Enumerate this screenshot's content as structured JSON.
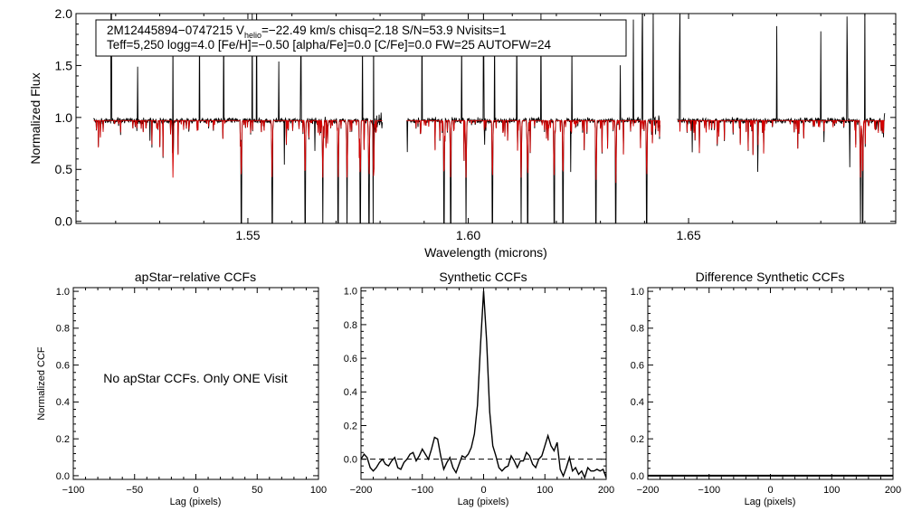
{
  "colors": {
    "observed": "#000000",
    "model": "#d40000",
    "axis": "#000000",
    "background": "#ffffff"
  },
  "chart_data": [
    {
      "type": "line",
      "title": "",
      "annotation_line1_prefix": "2M12445894−0747215  V",
      "annotation_line1_sub": "helio",
      "annotation_line1_suffix": "=−22.49 km/s  chisq=2.18  S/N=53.9  Nvisits=1",
      "annotation_line2": "Teff=5,250 logg=4.0 [Fe/H]=−0.50 [alpha/Fe]=0.0 [C/Fe]=0.0 FW=25 AUTOFW=24",
      "xlabel": "Wavelength (microns)",
      "ylabel": "Normalized Flux",
      "xlim": [
        1.511,
        1.697
      ],
      "ylim": [
        -0.02,
        2.0
      ],
      "xticks": [
        1.55,
        1.6,
        1.65
      ],
      "xtick_labels": [
        "1.55",
        "1.60",
        "1.65"
      ],
      "yticks": [
        0.0,
        0.5,
        1.0,
        1.5,
        2.0
      ],
      "ytick_labels": [
        "0.0",
        "0.5",
        "1.0",
        "1.5",
        "2.0"
      ],
      "chips": [
        [
          1.515,
          1.5805
        ],
        [
          1.586,
          1.6435
        ],
        [
          1.6475,
          1.6945
        ]
      ],
      "series": [
        {
          "name": "observed spectrum"
        },
        {
          "name": "synthetic model"
        }
      ],
      "strong_lines": [
        1.533,
        1.5485,
        1.5555,
        1.563,
        1.567,
        1.5705,
        1.5725,
        1.5755,
        1.5775,
        1.5785,
        1.5945,
        1.596,
        1.5995,
        1.6055,
        1.612,
        1.6135,
        1.6195,
        1.6215,
        1.629,
        1.6335,
        1.6405,
        1.689,
        1.6895
      ],
      "emission_spikes": [
        1.519,
        1.525,
        1.533,
        1.539,
        1.5445,
        1.551,
        1.552,
        1.557,
        1.562,
        1.576,
        1.5785,
        1.5895,
        1.5985,
        1.6035,
        1.606,
        1.611,
        1.6165,
        1.6235,
        1.6345,
        1.6375,
        1.6395,
        1.642,
        1.648,
        1.67,
        1.68,
        1.686,
        1.69
      ]
    },
    {
      "type": "line",
      "title": "apStar−relative CCFs",
      "xlabel": "Lag (pixels)",
      "ylabel": "Normalized CCF",
      "xlim": [
        -100,
        100
      ],
      "ylim": [
        -0.02,
        1.02
      ],
      "xticks": [
        -100,
        -50,
        0,
        50,
        100
      ],
      "xtick_labels": [
        "−100",
        "−50",
        "0",
        "50",
        "100"
      ],
      "yticks": [
        0.0,
        0.2,
        0.4,
        0.6,
        0.8,
        1.0
      ],
      "ytick_labels": [
        "0.0",
        "0.2",
        "0.4",
        "0.6",
        "0.8",
        "1.0"
      ],
      "message": "No apStar CCFs.  Only ONE Visit"
    },
    {
      "type": "line",
      "title": "Synthetic CCFs",
      "xlabel": "Lag (pixels)",
      "xlim": [
        -200,
        200
      ],
      "ylim": [
        -0.12,
        1.02
      ],
      "xticks": [
        -200,
        -100,
        0,
        100,
        200
      ],
      "xtick_labels": [
        "−200",
        "−100",
        "0",
        "100",
        "200"
      ],
      "yticks": [
        0.0,
        0.2,
        0.4,
        0.6,
        0.8,
        1.0
      ],
      "ytick_labels": [
        "0.0",
        "0.2",
        "0.4",
        "0.6",
        "0.8",
        "1.0"
      ],
      "zero_line": 0.0,
      "series": [
        {
          "name": "Synthetic CCF",
          "x": [
            -200,
            -195,
            -190,
            -185,
            -180,
            -175,
            -170,
            -165,
            -160,
            -155,
            -150,
            -145,
            -140,
            -135,
            -130,
            -125,
            -120,
            -115,
            -110,
            -105,
            -100,
            -95,
            -90,
            -85,
            -80,
            -75,
            -70,
            -65,
            -60,
            -55,
            -50,
            -45,
            -40,
            -35,
            -30,
            -25,
            -20,
            -15,
            -10,
            -5,
            0,
            5,
            10,
            15,
            20,
            25,
            30,
            35,
            40,
            45,
            50,
            55,
            60,
            65,
            70,
            75,
            80,
            85,
            90,
            95,
            100,
            105,
            110,
            115,
            120,
            125,
            130,
            135,
            140,
            145,
            150,
            155,
            160,
            165,
            170,
            175,
            180,
            185,
            190,
            195,
            200
          ],
          "y": [
            0.0,
            0.03,
            0.01,
            -0.05,
            -0.07,
            -0.05,
            -0.02,
            0.0,
            -0.03,
            -0.04,
            -0.01,
            0.01,
            -0.05,
            -0.06,
            -0.02,
            0.0,
            0.03,
            0.04,
            -0.01,
            0.02,
            0.06,
            0.03,
            0.0,
            0.06,
            0.13,
            0.12,
            0.02,
            -0.06,
            -0.02,
            0.01,
            -0.05,
            -0.08,
            -0.03,
            0.02,
            0.01,
            0.03,
            0.07,
            0.15,
            0.32,
            0.68,
            1.0,
            0.7,
            0.28,
            0.08,
            0.02,
            -0.05,
            -0.07,
            -0.05,
            -0.04,
            0.02,
            -0.01,
            -0.05,
            -0.01,
            -0.01,
            0.04,
            0.02,
            -0.03,
            -0.05,
            0.0,
            0.02,
            0.08,
            0.14,
            0.08,
            0.05,
            0.1,
            -0.06,
            -0.1,
            -0.05,
            0.01,
            -0.07,
            -0.05,
            -0.09,
            -0.07,
            -0.11,
            -0.05,
            -0.07,
            -0.07,
            -0.06,
            -0.07,
            -0.06,
            -0.11
          ]
        }
      ]
    },
    {
      "type": "line",
      "title": "Difference Synthetic CCFs",
      "xlabel": "Lag (pixels)",
      "xlim": [
        -200,
        200
      ],
      "ylim": [
        -0.02,
        1.02
      ],
      "xticks": [
        -200,
        -100,
        0,
        100,
        200
      ],
      "xtick_labels": [
        "−200",
        "−100",
        "0",
        "100",
        "200"
      ],
      "yticks": [
        0.0,
        0.2,
        0.4,
        0.6,
        0.8,
        1.0
      ],
      "ytick_labels": [
        "0.0",
        "0.2",
        "0.4",
        "0.6",
        "0.8",
        "1.0"
      ],
      "series": [
        {
          "name": "Difference CCF",
          "x": [
            -200,
            200
          ],
          "y": [
            0.0,
            0.0
          ]
        }
      ]
    }
  ]
}
